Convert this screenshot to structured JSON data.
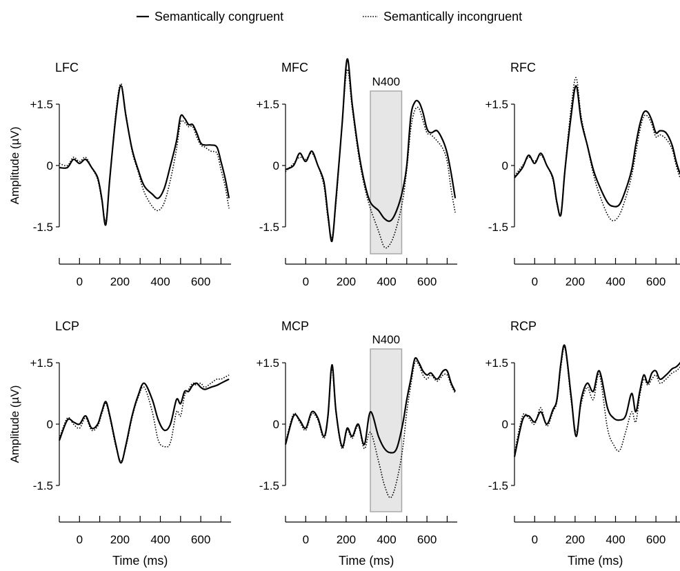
{
  "legend": {
    "placement": "top-center",
    "items": [
      {
        "label": "Semantically congruent",
        "style": "solid"
      },
      {
        "label": "Semantically incongruent",
        "style": "dotted"
      }
    ]
  },
  "chart_data": [
    {
      "type": "line",
      "title": "LFC",
      "ylabel": "Amplitude (µV)",
      "xlabel": "",
      "ylim": [
        -1.5,
        1.5
      ],
      "yticks": [
        "+1.5",
        "0",
        "-1.5"
      ],
      "xlim": [
        -100,
        750
      ],
      "xticks": [
        0,
        200,
        400,
        600
      ],
      "x": [
        -100,
        -60,
        -30,
        0,
        30,
        60,
        90,
        110,
        130,
        150,
        180,
        205,
        230,
        260,
        290,
        320,
        360,
        390,
        420,
        450,
        480,
        500,
        520,
        540,
        560,
        580,
        600,
        620,
        650,
        680,
        700,
        720,
        740
      ],
      "series": [
        {
          "name": "Semantically congruent",
          "values": [
            -0.05,
            -0.05,
            0.15,
            0.05,
            0.15,
            -0.05,
            -0.3,
            -0.8,
            -1.45,
            -0.3,
            1.2,
            1.95,
            1.2,
            0.4,
            -0.1,
            -0.5,
            -0.7,
            -0.8,
            -0.55,
            0.0,
            0.6,
            1.2,
            1.15,
            1.0,
            1.0,
            0.8,
            0.55,
            0.5,
            0.5,
            0.45,
            0.1,
            -0.3,
            -0.8
          ]
        },
        {
          "name": "Semantically incongruent",
          "values": [
            0.05,
            0.0,
            0.2,
            0.1,
            0.2,
            -0.05,
            -0.35,
            -0.85,
            -1.35,
            -0.35,
            1.3,
            2.0,
            1.25,
            0.35,
            -0.15,
            -0.65,
            -1.0,
            -1.1,
            -0.9,
            -0.35,
            0.4,
            1.05,
            1.05,
            0.95,
            0.95,
            0.7,
            0.5,
            0.45,
            0.35,
            0.3,
            -0.1,
            -0.5,
            -1.05
          ]
        }
      ]
    },
    {
      "type": "line",
      "title": "MFC",
      "ylabel": "",
      "xlabel": "",
      "ylim": [
        -1.5,
        1.5
      ],
      "yticks": [
        "+1.5",
        "0",
        "-1.5"
      ],
      "xlim": [
        -100,
        750
      ],
      "xticks": [
        0,
        200,
        400,
        600
      ],
      "shaded_region": {
        "x": [
          320,
          475
        ],
        "label": "N400"
      },
      "x": [
        -100,
        -60,
        -30,
        0,
        30,
        60,
        90,
        110,
        130,
        150,
        180,
        205,
        230,
        260,
        290,
        320,
        360,
        390,
        420,
        450,
        480,
        500,
        520,
        540,
        560,
        580,
        600,
        620,
        650,
        680,
        700,
        720,
        740
      ],
      "series": [
        {
          "name": "Semantically congruent",
          "values": [
            -0.1,
            0.0,
            0.3,
            0.1,
            0.35,
            0.0,
            -0.4,
            -1.2,
            -1.85,
            -0.8,
            1.0,
            2.6,
            1.5,
            0.4,
            -0.4,
            -0.9,
            -1.1,
            -1.3,
            -1.35,
            -1.1,
            -0.6,
            0.0,
            1.2,
            1.55,
            1.55,
            1.3,
            0.9,
            0.8,
            0.85,
            0.6,
            0.3,
            -0.2,
            -0.8
          ]
        },
        {
          "name": "Semantically incongruent",
          "values": [
            -0.15,
            0.05,
            0.2,
            0.15,
            0.3,
            0.0,
            -0.5,
            -1.3,
            -1.75,
            -0.9,
            1.0,
            2.35,
            1.4,
            0.3,
            -0.5,
            -1.05,
            -1.6,
            -2.0,
            -1.9,
            -1.5,
            -0.85,
            -0.1,
            0.9,
            1.35,
            1.4,
            1.1,
            0.8,
            0.75,
            0.6,
            0.4,
            0.1,
            -0.6,
            -1.15
          ]
        }
      ]
    },
    {
      "type": "line",
      "title": "RFC",
      "ylabel": "",
      "xlabel": "",
      "ylim": [
        -1.5,
        1.5
      ],
      "yticks": [
        "+1.5",
        "0",
        "-1.5"
      ],
      "xlim": [
        -100,
        750
      ],
      "xticks": [
        0,
        200,
        400,
        600
      ],
      "x": [
        -100,
        -60,
        -30,
        0,
        30,
        60,
        90,
        110,
        130,
        150,
        180,
        205,
        230,
        260,
        290,
        320,
        360,
        390,
        420,
        450,
        480,
        500,
        520,
        540,
        560,
        580,
        600,
        620,
        650,
        680,
        700,
        720,
        740
      ],
      "series": [
        {
          "name": "Semantically congruent",
          "values": [
            -0.3,
            -0.05,
            0.25,
            0.05,
            0.3,
            0.0,
            -0.3,
            -0.9,
            -1.2,
            -0.1,
            1.2,
            1.95,
            1.1,
            0.5,
            -0.1,
            -0.5,
            -0.9,
            -1.0,
            -0.95,
            -0.6,
            -0.1,
            0.5,
            1.0,
            1.3,
            1.3,
            1.1,
            0.8,
            0.85,
            0.8,
            0.5,
            0.1,
            -0.2,
            -0.3
          ]
        },
        {
          "name": "Semantically incongruent",
          "values": [
            -0.25,
            0.0,
            0.2,
            0.1,
            0.25,
            0.0,
            -0.35,
            -0.95,
            -1.15,
            -0.05,
            1.4,
            2.15,
            1.2,
            0.5,
            -0.2,
            -0.7,
            -1.2,
            -1.35,
            -1.2,
            -0.8,
            -0.25,
            0.3,
            0.85,
            1.2,
            1.2,
            1.0,
            0.7,
            0.75,
            0.65,
            0.4,
            0.0,
            -0.3,
            -0.4
          ]
        }
      ]
    },
    {
      "type": "line",
      "title": "LCP",
      "ylabel": "Amplitude (µV)",
      "xlabel": "Time (ms)",
      "ylim": [
        -1.5,
        1.5
      ],
      "yticks": [
        "+1.5",
        "0",
        "-1.5"
      ],
      "xlim": [
        -100,
        750
      ],
      "xticks": [
        0,
        200,
        400,
        600
      ],
      "x": [
        -100,
        -60,
        -30,
        0,
        30,
        60,
        90,
        110,
        130,
        150,
        180,
        205,
        230,
        260,
        290,
        320,
        360,
        390,
        420,
        450,
        480,
        500,
        520,
        540,
        560,
        580,
        600,
        620,
        650,
        680,
        700,
        720,
        740
      ],
      "series": [
        {
          "name": "Semantically congruent",
          "values": [
            -0.4,
            0.1,
            0.05,
            0.0,
            0.2,
            -0.1,
            0.0,
            0.3,
            0.55,
            0.2,
            -0.5,
            -0.95,
            -0.5,
            0.2,
            0.7,
            1.0,
            0.6,
            0.1,
            -0.15,
            0.0,
            0.6,
            0.5,
            0.8,
            0.8,
            0.95,
            1.0,
            0.9,
            0.85,
            0.9,
            0.95,
            1.0,
            1.05,
            1.1
          ]
        },
        {
          "name": "Semantically incongruent",
          "values": [
            -0.35,
            0.15,
            0.0,
            -0.1,
            0.15,
            -0.15,
            -0.05,
            0.25,
            0.5,
            0.15,
            -0.55,
            -0.9,
            -0.55,
            0.15,
            0.65,
            0.9,
            0.3,
            -0.4,
            -0.55,
            -0.45,
            0.3,
            0.2,
            0.7,
            0.85,
            1.0,
            0.95,
            1.0,
            0.9,
            1.0,
            1.1,
            1.1,
            1.15,
            1.2
          ]
        }
      ]
    },
    {
      "type": "line",
      "title": "MCP",
      "ylabel": "",
      "xlabel": "Time (ms)",
      "ylim": [
        -1.5,
        1.5
      ],
      "yticks": [
        "+1.5",
        "0",
        "-1.5"
      ],
      "xlim": [
        -100,
        750
      ],
      "xticks": [
        0,
        200,
        400,
        600
      ],
      "shaded_region": {
        "x": [
          320,
          475
        ],
        "label": "N400"
      },
      "x": [
        -100,
        -60,
        -30,
        0,
        30,
        60,
        90,
        110,
        130,
        150,
        180,
        205,
        230,
        260,
        290,
        320,
        360,
        390,
        420,
        450,
        480,
        500,
        520,
        540,
        560,
        580,
        600,
        620,
        650,
        680,
        700,
        720,
        740
      ],
      "series": [
        {
          "name": "Semantically congruent",
          "values": [
            -0.5,
            0.2,
            0.1,
            -0.1,
            0.3,
            0.15,
            -0.3,
            0.2,
            1.45,
            0.3,
            -0.55,
            -0.1,
            -0.3,
            0.0,
            -0.5,
            0.3,
            -0.3,
            -0.6,
            -0.7,
            -0.6,
            0.0,
            0.6,
            1.1,
            1.6,
            1.5,
            1.3,
            1.2,
            1.25,
            1.1,
            1.3,
            1.3,
            1.0,
            0.8
          ]
        },
        {
          "name": "Semantically incongruent",
          "values": [
            -0.45,
            0.25,
            0.05,
            -0.15,
            0.25,
            0.1,
            -0.35,
            0.15,
            1.35,
            0.25,
            -0.6,
            -0.15,
            -0.35,
            -0.05,
            -0.6,
            -0.2,
            -0.9,
            -1.5,
            -1.8,
            -1.4,
            -0.6,
            0.3,
            0.95,
            1.5,
            1.45,
            1.2,
            1.1,
            1.2,
            1.05,
            1.2,
            1.2,
            0.95,
            0.75
          ]
        }
      ]
    },
    {
      "type": "line",
      "title": "RCP",
      "ylabel": "",
      "xlabel": "Time (ms)",
      "ylim": [
        -1.5,
        1.5
      ],
      "yticks": [
        "+1.5",
        "0",
        "-1.5"
      ],
      "xlim": [
        -100,
        750
      ],
      "xticks": [
        0,
        200,
        400,
        600
      ],
      "x": [
        -100,
        -60,
        -30,
        0,
        30,
        60,
        90,
        110,
        130,
        150,
        180,
        205,
        230,
        260,
        290,
        320,
        360,
        390,
        420,
        450,
        480,
        500,
        520,
        540,
        560,
        580,
        600,
        620,
        650,
        680,
        700,
        720,
        740
      ],
      "series": [
        {
          "name": "Semantically congruent",
          "values": [
            -0.8,
            0.1,
            0.2,
            0.05,
            0.3,
            0.0,
            0.35,
            0.6,
            1.5,
            1.9,
            0.7,
            -0.3,
            0.6,
            1.0,
            0.8,
            1.3,
            0.4,
            0.15,
            0.1,
            0.2,
            0.75,
            0.3,
            0.8,
            1.2,
            1.0,
            1.25,
            1.3,
            1.1,
            1.2,
            1.35,
            1.4,
            1.5,
            1.65
          ]
        },
        {
          "name": "Semantically incongruent",
          "values": [
            -0.7,
            0.2,
            0.15,
            0.0,
            0.4,
            -0.05,
            0.3,
            0.55,
            1.4,
            1.85,
            0.6,
            -0.2,
            0.5,
            0.9,
            0.6,
            1.2,
            -0.1,
            -0.5,
            -0.65,
            -0.2,
            0.3,
            0.05,
            0.7,
            1.1,
            0.95,
            1.1,
            1.2,
            1.0,
            1.1,
            1.25,
            1.3,
            1.4,
            1.55
          ]
        }
      ]
    }
  ]
}
